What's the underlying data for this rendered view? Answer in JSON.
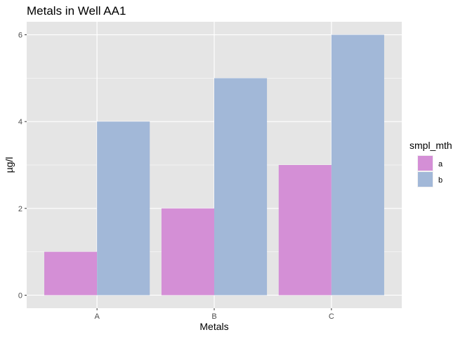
{
  "chart_data": {
    "type": "bar",
    "title": "Metals in Well AA1",
    "xlabel": "Metals",
    "ylabel": "µg/l",
    "categories": [
      "A",
      "B",
      "C"
    ],
    "series": [
      {
        "name": "a",
        "values": [
          1,
          2,
          3
        ],
        "color": "#d48fd6"
      },
      {
        "name": "b",
        "values": [
          4,
          5,
          6
        ],
        "color": "#a2b8d8"
      }
    ],
    "ylim": [
      -0.3,
      6.3
    ],
    "yticks": [
      0,
      2,
      4,
      6
    ],
    "yticks_labels": [
      "0",
      "2",
      "4",
      "6"
    ],
    "grid": true,
    "legend": {
      "title": "smpl_mth",
      "position": "right"
    },
    "colors": {
      "panel": "#e5e5e5",
      "grid": "#ffffff"
    }
  }
}
